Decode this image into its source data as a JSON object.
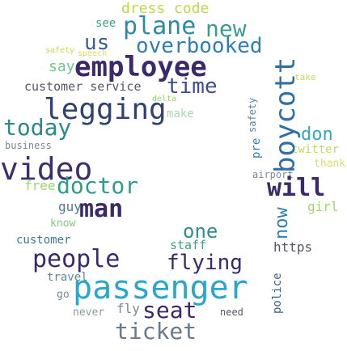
{
  "words": [
    {
      "text": "dress code",
      "color": "#bcd94a"
    },
    {
      "text": "see",
      "color": "#3fa085"
    },
    {
      "text": "plane",
      "color": "#2a8aa8"
    },
    {
      "text": "new",
      "color": "#3a9e8f"
    },
    {
      "text": "us",
      "color": "#3a5f8c"
    },
    {
      "text": "overbooked",
      "color": "#2f7fb5"
    },
    {
      "text": "safety",
      "color": "#c8d85a"
    },
    {
      "text": "speech",
      "color": "#d9e34c"
    },
    {
      "text": "say",
      "color": "#6bc78a"
    },
    {
      "text": "employee",
      "color": "#3a2a6a"
    },
    {
      "text": "customer service",
      "color": "#555566"
    },
    {
      "text": "time",
      "color": "#3c4f8c"
    },
    {
      "text": "legging",
      "color": "#32426e"
    },
    {
      "text": "delta",
      "color": "#9bd06a"
    },
    {
      "text": "make",
      "color": "#a8d8b0"
    },
    {
      "text": "today",
      "color": "#2d8a8a"
    },
    {
      "text": "business",
      "color": "#7a8a95"
    },
    {
      "text": "video",
      "color": "#3d2f6e"
    },
    {
      "text": "free",
      "color": "#9ed56a"
    },
    {
      "text": "doctor",
      "color": "#2e9e8c"
    },
    {
      "text": "guy",
      "color": "#4a7a9a"
    },
    {
      "text": "man",
      "color": "#3a2a6a"
    },
    {
      "text": "know",
      "color": "#7ec97a"
    },
    {
      "text": "customer",
      "color": "#3a7a8e"
    },
    {
      "text": "one",
      "color": "#2f8e8a"
    },
    {
      "text": "staff",
      "color": "#3fa085"
    },
    {
      "text": "people",
      "color": "#3a2a6a"
    },
    {
      "text": "flying",
      "color": "#3a2a6a"
    },
    {
      "text": "travel",
      "color": "#5a8aa0"
    },
    {
      "text": "passenger",
      "color": "#2aa6c8"
    },
    {
      "text": "go",
      "color": "#7a8a95"
    },
    {
      "text": "fly",
      "color": "#7a8a95"
    },
    {
      "text": "never",
      "color": "#8a9a9a"
    },
    {
      "text": "seat",
      "color": "#3a2a6a"
    },
    {
      "text": "need",
      "color": "#555566"
    },
    {
      "text": "ticket",
      "color": "#6a7a8a"
    },
    {
      "text": "boycott",
      "color": "#2f6fa8"
    },
    {
      "text": "take",
      "color": "#c8d85a"
    },
    {
      "text": "twitter",
      "color": "#c8d85a"
    },
    {
      "text": "don",
      "color": "#35a6c0"
    },
    {
      "text": "airport",
      "color": "#7a8a95"
    },
    {
      "text": "will",
      "color": "#3a2a6a"
    },
    {
      "text": "girl",
      "color": "#9ed56a"
    },
    {
      "text": "now",
      "color": "#2f7fb5"
    },
    {
      "text": "https",
      "color": "#555566"
    },
    {
      "text": "police",
      "color": "#3a5f8c"
    },
    {
      "text": "thank",
      "color": "#d9e34c"
    },
    {
      "text": "pre",
      "color": "#2f7fb5"
    },
    {
      "text": "safety",
      "color": "#4a8aa8"
    }
  ]
}
